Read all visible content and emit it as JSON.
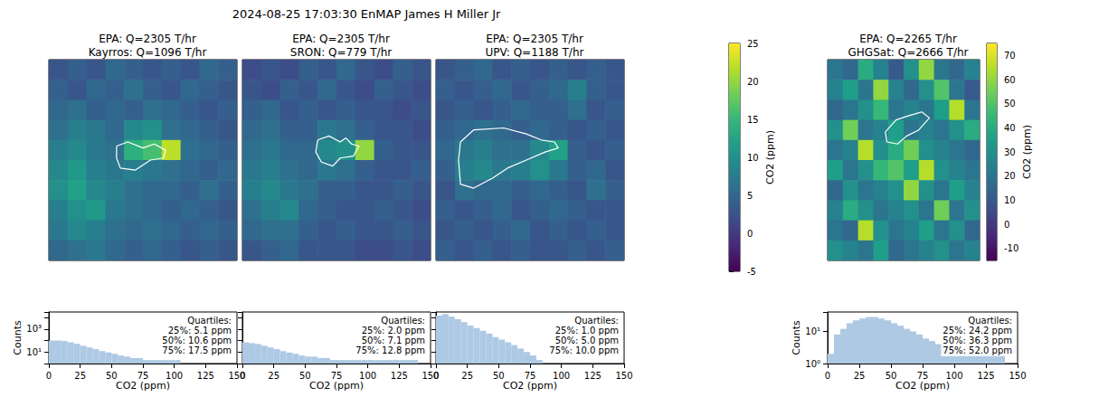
{
  "figure_title": "2024-08-25 17:03:30 EnMAP James H Miller Jr",
  "chart_data": [
    {
      "type": "heatmap",
      "title": "EPA: Q=2305 T/hr\nKayrros: Q=1096 T/hr",
      "tick_labels": false,
      "cells": [
        [
          3,
          4,
          3,
          5,
          4,
          3,
          4,
          3,
          5,
          4
        ],
        [
          4,
          3,
          5,
          4,
          6,
          4,
          3,
          5,
          4,
          3
        ],
        [
          5,
          6,
          4,
          5,
          4,
          6,
          5,
          4,
          3,
          4
        ],
        [
          6,
          8,
          7,
          5,
          9,
          10,
          6,
          5,
          4,
          3
        ],
        [
          8,
          9,
          7,
          6,
          14,
          16,
          22,
          6,
          5,
          4
        ],
        [
          9,
          11,
          8,
          7,
          8,
          7,
          6,
          5,
          4,
          5
        ],
        [
          10,
          12,
          9,
          8,
          6,
          5,
          5,
          4,
          6,
          4
        ],
        [
          8,
          10,
          11,
          7,
          6,
          5,
          4,
          5,
          4,
          3
        ],
        [
          7,
          9,
          8,
          6,
          5,
          6,
          5,
          4,
          5,
          4
        ],
        [
          5,
          6,
          7,
          5,
          4,
          5,
          4,
          3,
          4,
          3
        ]
      ],
      "plume_outline": [
        [
          3.6,
          4.3
        ],
        [
          4.2,
          4.1
        ],
        [
          5.0,
          4.4
        ],
        [
          5.6,
          4.2
        ],
        [
          6.2,
          4.5
        ],
        [
          6.1,
          4.9
        ],
        [
          5.4,
          5.0
        ],
        [
          4.6,
          5.5
        ],
        [
          3.8,
          5.4
        ],
        [
          3.6,
          4.9
        ]
      ],
      "colorbar": {
        "lim": [
          -5,
          25
        ]
      }
    },
    {
      "type": "heatmap",
      "title": "EPA: Q=2305 T/hr\nSRON: Q=779 T/hr",
      "tick_labels": false,
      "cells": [
        [
          2,
          3,
          2,
          4,
          3,
          5,
          3,
          2,
          4,
          3
        ],
        [
          3,
          2,
          4,
          3,
          5,
          3,
          2,
          4,
          3,
          2
        ],
        [
          4,
          5,
          3,
          4,
          3,
          4,
          3,
          3,
          2,
          3
        ],
        [
          5,
          6,
          4,
          4,
          7,
          6,
          4,
          3,
          3,
          2
        ],
        [
          6,
          7,
          5,
          5,
          9,
          10,
          20,
          4,
          3,
          3
        ],
        [
          7,
          8,
          6,
          5,
          7,
          6,
          4,
          3,
          3,
          4
        ],
        [
          8,
          9,
          7,
          6,
          4,
          4,
          3,
          3,
          4,
          3
        ],
        [
          6,
          8,
          9,
          5,
          4,
          3,
          3,
          4,
          3,
          2
        ],
        [
          5,
          6,
          6,
          4,
          3,
          4,
          3,
          3,
          4,
          3
        ],
        [
          3,
          4,
          5,
          3,
          3,
          3,
          2,
          2,
          3,
          2
        ]
      ],
      "plume_outline": [
        [
          4.0,
          4.0
        ],
        [
          4.6,
          3.8
        ],
        [
          5.2,
          4.1
        ],
        [
          5.5,
          3.9
        ],
        [
          5.8,
          4.2
        ],
        [
          6.2,
          4.3
        ],
        [
          5.9,
          4.8
        ],
        [
          5.2,
          4.9
        ],
        [
          4.8,
          5.3
        ],
        [
          4.2,
          5.1
        ],
        [
          3.9,
          4.6
        ]
      ],
      "colorbar": {
        "lim": [
          -5,
          25
        ]
      }
    },
    {
      "type": "heatmap",
      "title": "EPA: Q=2305 T/hr\nUPV: Q=1188 T/hr",
      "tick_labels": false,
      "cells": [
        [
          3,
          4,
          5,
          3,
          4,
          3,
          4,
          3,
          4,
          3
        ],
        [
          4,
          3,
          4,
          5,
          3,
          4,
          5,
          8,
          4,
          3
        ],
        [
          3,
          4,
          3,
          4,
          5,
          4,
          4,
          6,
          3,
          4
        ],
        [
          4,
          5,
          6,
          5,
          4,
          5,
          4,
          3,
          4,
          3
        ],
        [
          5,
          7,
          8,
          6,
          6,
          9,
          12,
          4,
          3,
          4
        ],
        [
          4,
          8,
          9,
          7,
          8,
          10,
          7,
          4,
          5,
          3
        ],
        [
          3,
          6,
          5,
          5,
          4,
          5,
          4,
          3,
          6,
          4
        ],
        [
          4,
          3,
          4,
          5,
          3,
          4,
          5,
          4,
          3,
          3
        ],
        [
          3,
          4,
          3,
          4,
          5,
          3,
          4,
          3,
          4,
          3
        ],
        [
          4,
          3,
          4,
          3,
          4,
          3,
          3,
          4,
          3,
          4
        ]
      ],
      "plume_outline": [
        [
          1.3,
          4.1
        ],
        [
          2.0,
          3.5
        ],
        [
          3.6,
          3.4
        ],
        [
          4.8,
          3.7
        ],
        [
          5.6,
          4.0
        ],
        [
          6.3,
          4.1
        ],
        [
          6.5,
          4.4
        ],
        [
          5.8,
          4.6
        ],
        [
          4.8,
          5.0
        ],
        [
          3.8,
          5.4
        ],
        [
          3.0,
          5.9
        ],
        [
          2.0,
          6.4
        ],
        [
          1.3,
          6.2
        ],
        [
          1.2,
          5.0
        ]
      ],
      "colorbar": {
        "lim": [
          -5,
          25
        ],
        "ticks": [
          -5,
          0,
          5,
          10,
          15,
          20,
          25
        ],
        "label": "CO2 (ppm)"
      }
    },
    {
      "type": "heatmap",
      "title": "EPA: Q=2265 T/hr\nGHGSat: Q=2666 T/hr",
      "tick_labels": false,
      "cells": [
        [
          20,
          15,
          40,
          25,
          10,
          30,
          60,
          20,
          15,
          25
        ],
        [
          25,
          35,
          20,
          60,
          25,
          15,
          30,
          50,
          20,
          10
        ],
        [
          15,
          20,
          30,
          45,
          20,
          25,
          20,
          35,
          65,
          20
        ],
        [
          30,
          55,
          20,
          25,
          35,
          20,
          25,
          20,
          30,
          40
        ],
        [
          20,
          25,
          65,
          30,
          40,
          55,
          30,
          25,
          20,
          15
        ],
        [
          35,
          20,
          30,
          45,
          50,
          35,
          65,
          30,
          25,
          20
        ],
        [
          15,
          30,
          20,
          25,
          30,
          60,
          30,
          20,
          35,
          25
        ],
        [
          25,
          40,
          30,
          20,
          25,
          30,
          20,
          55,
          20,
          30
        ],
        [
          20,
          15,
          65,
          30,
          20,
          25,
          35,
          20,
          30,
          15
        ],
        [
          30,
          25,
          20,
          35,
          15,
          20,
          25,
          30,
          20,
          25
        ]
      ],
      "plume_outline": [
        [
          3.8,
          3.6
        ],
        [
          4.5,
          3.0
        ],
        [
          5.3,
          2.8
        ],
        [
          6.2,
          2.6
        ],
        [
          6.7,
          2.9
        ],
        [
          6.0,
          3.5
        ],
        [
          5.2,
          3.8
        ],
        [
          4.6,
          4.2
        ],
        [
          3.9,
          4.1
        ]
      ],
      "colorbar": {
        "lim": [
          -15,
          75
        ],
        "ticks": [
          -10,
          0,
          10,
          20,
          30,
          40,
          50,
          60,
          70
        ],
        "label": "CO2 (ppm)"
      }
    },
    {
      "type": "histogram",
      "xlabel": "CO2 (ppm)",
      "ylabel": "Counts",
      "log": "y",
      "color": "#aec9e3",
      "bins": [
        0,
        5,
        10,
        15,
        20,
        25,
        30,
        35,
        40,
        45,
        50,
        55,
        60,
        65,
        70,
        75,
        80,
        85,
        90,
        95,
        100,
        105,
        110,
        115,
        120,
        125,
        130,
        135,
        140,
        145,
        150
      ],
      "counts": [
        100,
        100,
        90,
        70,
        50,
        35,
        25,
        18,
        12,
        9,
        7,
        5,
        4,
        3,
        3,
        2,
        2,
        2,
        2,
        2,
        2,
        0,
        0,
        0,
        0,
        0,
        0,
        0,
        0,
        0
      ],
      "xlim": [
        0,
        150
      ],
      "xticks": [
        0,
        25,
        50,
        75,
        100,
        125,
        150
      ],
      "ylim": [
        1,
        30000
      ],
      "yticks": [
        {
          "value": 10,
          "label": "10¹"
        },
        {
          "value": 1000,
          "label": "10³"
        }
      ],
      "annotation": [
        "Quartiles:",
        "25%: 5.1 ppm",
        "50%: 10.6 ppm",
        "75%: 17.5 ppm"
      ]
    },
    {
      "type": "histogram",
      "xlabel": "CO2 (ppm)",
      "log": "y",
      "color": "#aec9e3",
      "tick_labels": "x",
      "bins": [
        0,
        5,
        10,
        15,
        20,
        25,
        30,
        35,
        40,
        45,
        50,
        55,
        60,
        65,
        70,
        75,
        80,
        85,
        90,
        95,
        100,
        105,
        110,
        115,
        120,
        125,
        130,
        135,
        140,
        145,
        150
      ],
      "counts": [
        70,
        60,
        50,
        35,
        25,
        18,
        12,
        9,
        7,
        5,
        4,
        4,
        3,
        3,
        2,
        2,
        2,
        2,
        2,
        2,
        2,
        2,
        2,
        2,
        2,
        2,
        2,
        2,
        0,
        0
      ],
      "xlim": [
        0,
        150
      ],
      "xticks": [
        0,
        25,
        50,
        75,
        100,
        125,
        150
      ],
      "ylim": [
        1,
        30000
      ],
      "yticks": [
        {
          "value": 10,
          "label": "10¹"
        },
        {
          "value": 1000,
          "label": "10³"
        }
      ],
      "annotation": [
        "Quartiles:",
        "25%: 2.0 ppm",
        "50%: 7.1 ppm",
        "75%: 12.8 ppm"
      ]
    },
    {
      "type": "histogram",
      "xlabel": "CO2 (ppm)",
      "log": "y",
      "color": "#aec9e3",
      "tick_labels": "x",
      "bins": [
        0,
        5,
        10,
        15,
        20,
        25,
        30,
        35,
        40,
        45,
        50,
        55,
        60,
        65,
        70,
        75,
        80,
        85,
        90,
        95,
        100,
        105,
        110,
        115,
        120,
        125,
        130,
        135,
        140,
        145,
        150
      ],
      "counts": [
        15000,
        20000,
        12000,
        7000,
        4000,
        2000,
        1200,
        700,
        400,
        200,
        120,
        70,
        40,
        20,
        10,
        5,
        2,
        0,
        0,
        0,
        0,
        0,
        0,
        0,
        0,
        0,
        0,
        0,
        0,
        0
      ],
      "xlim": [
        0,
        150
      ],
      "xticks": [
        0,
        25,
        50,
        75,
        100,
        125,
        150
      ],
      "ylim": [
        1,
        30000
      ],
      "yticks": [
        {
          "value": 10,
          "label": "10¹"
        },
        {
          "value": 1000,
          "label": "10³"
        }
      ],
      "annotation": [
        "Quartiles:",
        "25%: 1.0 ppm",
        "50%: 5.0 ppm",
        "75%: 10.0 ppm"
      ]
    },
    {
      "type": "histogram",
      "xlabel": "CO2 (ppm)",
      "ylabel": "Counts",
      "log": "y",
      "color": "#aec9e3",
      "bins": [
        0,
        5,
        10,
        15,
        20,
        25,
        30,
        35,
        40,
        45,
        50,
        55,
        60,
        65,
        70,
        75,
        80,
        85,
        90,
        95,
        100,
        105,
        110,
        115,
        120,
        125,
        130,
        135,
        140,
        145,
        150
      ],
      "counts": [
        2,
        8,
        12,
        18,
        22,
        25,
        28,
        28,
        25,
        22,
        18,
        15,
        12,
        10,
        8,
        6,
        5,
        4,
        4,
        3,
        3,
        2,
        2,
        2,
        2,
        2,
        2,
        2,
        0,
        0
      ],
      "xlim": [
        0,
        150
      ],
      "xticks": [
        0,
        25,
        50,
        75,
        100,
        125,
        150
      ],
      "ylim": [
        1,
        40
      ],
      "yticks": [
        {
          "value": 1,
          "label": "10⁰"
        },
        {
          "value": 10,
          "label": "10¹"
        }
      ],
      "annotation": [
        "Quartiles:",
        "25%: 24.2 ppm",
        "50%: 36.3 ppm",
        "75%: 52.0 ppm"
      ]
    }
  ]
}
